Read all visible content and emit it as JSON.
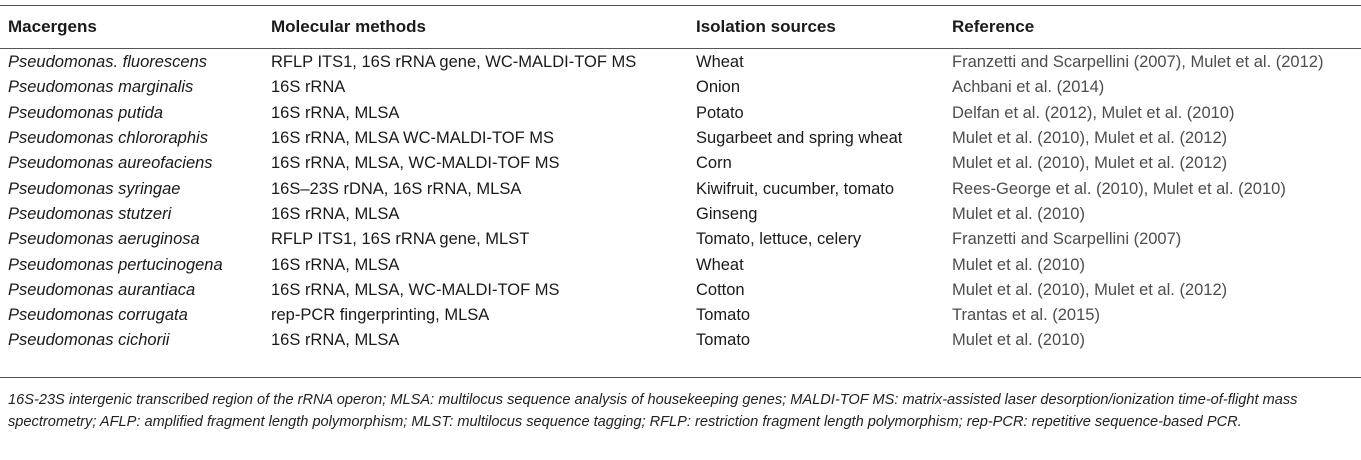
{
  "table": {
    "headers": [
      "Macergens",
      "Molecular methods",
      "Isolation sources",
      "Reference"
    ],
    "rows": [
      {
        "species": "Pseudomonas. fluorescens",
        "methods": "RFLP ITS1, 16S rRNA gene, WC-MALDI-TOF MS",
        "sources": "Wheat",
        "reference": "Franzetti and Scarpellini (2007), Mulet et al. (2012)"
      },
      {
        "species": "Pseudomonas marginalis",
        "methods": "16S rRNA",
        "sources": "Onion",
        "reference": "Achbani et al. (2014)"
      },
      {
        "species": "Pseudomonas putida",
        "methods": "16S rRNA, MLSA",
        "sources": "Potato",
        "reference": "Delfan et al. (2012), Mulet et al. (2010)"
      },
      {
        "species": "Pseudomonas chlororaphis",
        "methods": "16S rRNA, MLSA WC-MALDI-TOF MS",
        "sources": "Sugarbeet and spring wheat",
        "reference": "Mulet et al. (2010), Mulet et al. (2012)"
      },
      {
        "species": "Pseudomonas aureofaciens",
        "methods": "16S rRNA, MLSA, WC-MALDI-TOF MS",
        "sources": "Corn",
        "reference": "Mulet et al. (2010), Mulet et al. (2012)"
      },
      {
        "species": "Pseudomonas syringae",
        "methods": "16S–23S rDNA, 16S rRNA, MLSA",
        "sources": "Kiwifruit, cucumber, tomato",
        "reference": "Rees-George et al. (2010), Mulet et al. (2010)"
      },
      {
        "species": "Pseudomonas stutzeri",
        "methods": "16S rRNA, MLSA",
        "sources": "Ginseng",
        "reference": "Mulet et al. (2010)"
      },
      {
        "species": "Pseudomonas aeruginosa",
        "methods": "RFLP ITS1, 16S rRNA gene, MLST",
        "sources": "Tomato, lettuce, celery",
        "reference": "Franzetti and Scarpellini (2007)"
      },
      {
        "species": "Pseudomonas pertucinogena",
        "methods": "16S rRNA, MLSA",
        "sources": "Wheat",
        "reference": "Mulet et al. (2010)"
      },
      {
        "species": "Pseudomonas aurantiaca",
        "methods": "16S rRNA, MLSA, WC-MALDI-TOF MS",
        "sources": "Cotton",
        "reference": "Mulet et al. (2010), Mulet et al. (2012)"
      },
      {
        "species": "Pseudomonas corrugata",
        "methods": "rep-PCR fingerprinting, MLSA",
        "sources": "Tomato",
        "reference": "Trantas et al. (2015)"
      },
      {
        "species": "Pseudomonas cichorii",
        "methods": "16S rRNA, MLSA",
        "sources": "Tomato",
        "reference": "Mulet et al. (2010)"
      }
    ]
  },
  "footnote": "16S-23S intergenic transcribed region of the rRNA operon; MLSA: multilocus sequence analysis of housekeeping genes; MALDI-TOF MS: matrix-assisted laser desorption/ionization time-of-flight mass spectrometry; AFLP: amplified fragment length polymorphism; MLST: multilocus sequence tagging; RFLP: restriction fragment length polymorphism; rep-PCR: repetitive sequence-based PCR."
}
